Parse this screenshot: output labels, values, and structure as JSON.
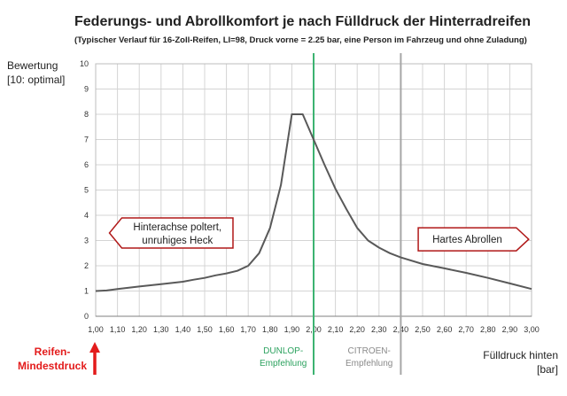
{
  "chart_data": {
    "type": "line",
    "title": "Federungs- und Abrollkomfort je nach Fülldruck der Hinterradreifen",
    "subtitle": "(Typischer Verlauf für 16-Zoll-Reifen, LI=98, Druck vorne = 2.25 bar, eine Person im Fahrzeug und ohne Zuladung)",
    "ylabel_line1": "Bewertung",
    "ylabel_line2": "[10: optimal]",
    "xlabel_line1": "Fülldruck hinten",
    "xlabel_line2": "[bar]",
    "xlim": [
      1.0,
      3.0
    ],
    "ylim": [
      0,
      10
    ],
    "grid": true,
    "x_ticks": [
      "1,00",
      "1,10",
      "1,20",
      "1,30",
      "1,40",
      "1,50",
      "1,60",
      "1,70",
      "1,80",
      "1,90",
      "2,00",
      "2,10",
      "2,20",
      "2,30",
      "2,40",
      "2,50",
      "2,60",
      "2,70",
      "2,80",
      "2,90",
      "3,00"
    ],
    "y_ticks": [
      "0",
      "1",
      "2",
      "3",
      "4",
      "5",
      "6",
      "7",
      "8",
      "9",
      "10"
    ],
    "series": [
      {
        "color": "#595959",
        "x": [
          1.0,
          1.05,
          1.1,
          1.2,
          1.3,
          1.4,
          1.45,
          1.5,
          1.55,
          1.6,
          1.65,
          1.7,
          1.75,
          1.8,
          1.85,
          1.9,
          1.95,
          2.0,
          2.05,
          2.1,
          2.15,
          2.2,
          2.25,
          2.3,
          2.35,
          2.4,
          2.5,
          2.6,
          2.7,
          2.8,
          2.9,
          3.0
        ],
        "y": [
          1.0,
          1.02,
          1.08,
          1.18,
          1.27,
          1.37,
          1.45,
          1.52,
          1.62,
          1.7,
          1.8,
          2.0,
          2.5,
          3.5,
          5.2,
          8.0,
          8.0,
          7.0,
          6.0,
          5.05,
          4.25,
          3.5,
          3.0,
          2.72,
          2.5,
          2.33,
          2.07,
          1.9,
          1.72,
          1.52,
          1.3,
          1.08
        ]
      }
    ],
    "reference_lines": [
      {
        "x": 2.0,
        "color": "#3cb371",
        "label_line1": "DUNLOP-",
        "label_line2": "Empfehlung"
      },
      {
        "x": 2.4,
        "color": "#a6a6a6",
        "label_line1": "CITROEN-",
        "label_line2": "Empfehlung"
      }
    ],
    "callouts": [
      {
        "line1": "Hinterachse poltert,",
        "line2": "unruhiges Heck",
        "direction": "left",
        "x_from": 1.12,
        "x_to": 1.63,
        "y_center": 3.3
      },
      {
        "line1": "Hartes Abrollen",
        "direction": "right",
        "x_from": 2.48,
        "x_to": 2.93,
        "y_center": 3.05
      }
    ],
    "minimum_marker": {
      "x": 1.0,
      "line1": "Reifen-",
      "line2": "Mindestdruck",
      "color": "#e31b1b"
    }
  }
}
